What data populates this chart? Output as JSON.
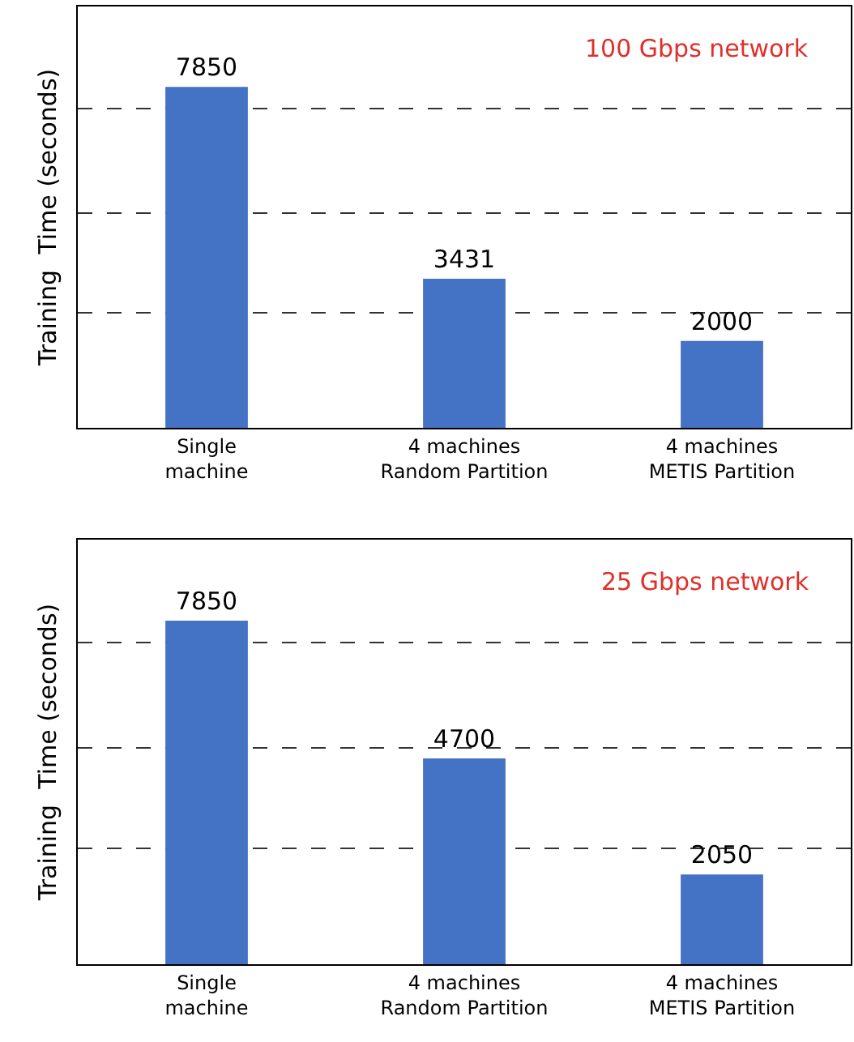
{
  "chart_data": [
    {
      "type": "bar",
      "title": "100 Gbps network",
      "ylabel": "Training  Time (seconds)",
      "categories": [
        "Single\nmachine",
        "4 machines\nRandom Partition",
        "4 machines\nMETIS Partition"
      ],
      "values": [
        7850,
        3431,
        2000
      ],
      "color": "#4472c4",
      "data_labels": true,
      "ylim": [
        0,
        9700
      ],
      "yticks": [
        {
          "value": 2650,
          "label": null
        },
        {
          "value": 4950,
          "label": null
        },
        {
          "value": 7350,
          "label": null
        }
      ],
      "grid": "y",
      "tick_labels": "x"
    },
    {
      "type": "bar",
      "title": "25 Gbps network",
      "ylabel": "Training  Time (seconds)",
      "categories": [
        "Single\nmachine",
        "4 machines\nRandom Partition",
        "4 machines\nMETIS Partition"
      ],
      "values": [
        7850,
        4700,
        2050
      ],
      "color": "#4472c4",
      "data_labels": true,
      "ylim": [
        0,
        9700
      ],
      "yticks": [
        {
          "value": 2650,
          "label": null
        },
        {
          "value": 4950,
          "label": null
        },
        {
          "value": 7350,
          "label": null
        }
      ],
      "grid": "y",
      "tick_labels": "x"
    }
  ]
}
